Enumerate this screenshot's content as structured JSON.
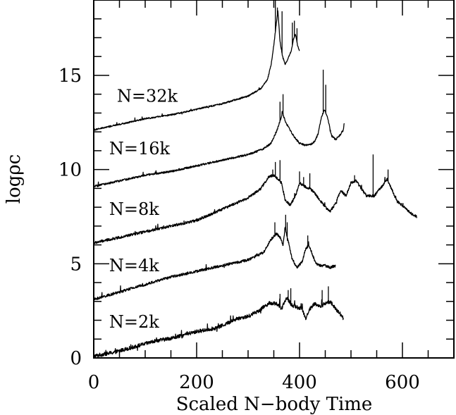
{
  "chart_data": {
    "type": "line",
    "xlabel": "Scaled N−body Time",
    "ylabel": "logρc",
    "xlim": [
      0,
      700
    ],
    "ylim": [
      0,
      19
    ],
    "x_ticks": [
      0,
      200,
      400,
      600
    ],
    "y_ticks": [
      0,
      5,
      10,
      15
    ],
    "x_minor_step": 50,
    "y_minor_step": 1,
    "grid": false,
    "legend": "none",
    "line_color": "#000000",
    "series": [
      {
        "name": "N=2k",
        "label_pos": [
          30,
          1.6
        ],
        "noise": 0.1,
        "points": [
          [
            0,
            0.1
          ],
          [
            40,
            0.3
          ],
          [
            80,
            0.6
          ],
          [
            120,
            0.9
          ],
          [
            160,
            1.1
          ],
          [
            200,
            1.4
          ],
          [
            240,
            1.6
          ],
          [
            280,
            2.1
          ],
          [
            300,
            2.2
          ],
          [
            320,
            2.5
          ],
          [
            340,
            2.9
          ],
          [
            355,
            2.9
          ],
          [
            365,
            2.6
          ],
          [
            375,
            3.2
          ],
          [
            385,
            2.8
          ],
          [
            395,
            2.7
          ],
          [
            405,
            2.6
          ],
          [
            412,
            2.1
          ],
          [
            420,
            2.6
          ],
          [
            430,
            2.9
          ],
          [
            440,
            2.7
          ],
          [
            450,
            2.9
          ],
          [
            460,
            3.0
          ],
          [
            470,
            2.6
          ],
          [
            480,
            2.3
          ],
          [
            485,
            2.1
          ]
        ],
        "spikes": [
          [
            362,
            3.4
          ],
          [
            378,
            3.6
          ],
          [
            383,
            3.7
          ],
          [
            444,
            3.6
          ],
          [
            456,
            3.8
          ]
        ]
      },
      {
        "name": "N=4k",
        "label_pos": [
          30,
          4.6
        ],
        "noise": 0.07,
        "points": [
          [
            0,
            3.1
          ],
          [
            50,
            3.5
          ],
          [
            100,
            3.9
          ],
          [
            150,
            4.3
          ],
          [
            200,
            4.6
          ],
          [
            250,
            4.9
          ],
          [
            300,
            5.2
          ],
          [
            330,
            5.6
          ],
          [
            345,
            6.3
          ],
          [
            355,
            6.6
          ],
          [
            362,
            6.4
          ],
          [
            368,
            6.0
          ],
          [
            372,
            6.9
          ],
          [
            378,
            6.2
          ],
          [
            385,
            5.3
          ],
          [
            395,
            4.8
          ],
          [
            405,
            5.1
          ],
          [
            412,
            5.8
          ],
          [
            418,
            6.0
          ],
          [
            425,
            5.5
          ],
          [
            432,
            5.0
          ],
          [
            440,
            4.9
          ],
          [
            450,
            4.9
          ],
          [
            460,
            4.8
          ],
          [
            470,
            4.9
          ]
        ],
        "spikes": [
          [
            352,
            7.2
          ],
          [
            373,
            7.6
          ],
          [
            376,
            7.2
          ],
          [
            416,
            6.5
          ]
        ]
      },
      {
        "name": "N=8k",
        "label_pos": [
          30,
          7.6
        ],
        "noise": 0.07,
        "points": [
          [
            0,
            6.1
          ],
          [
            50,
            6.4
          ],
          [
            100,
            6.7
          ],
          [
            150,
            7.0
          ],
          [
            200,
            7.3
          ],
          [
            250,
            7.9
          ],
          [
            300,
            8.5
          ],
          [
            325,
            9.0
          ],
          [
            340,
            9.6
          ],
          [
            350,
            9.7
          ],
          [
            358,
            9.5
          ],
          [
            365,
            9.3
          ],
          [
            372,
            8.4
          ],
          [
            382,
            8.1
          ],
          [
            392,
            8.6
          ],
          [
            400,
            9.3
          ],
          [
            410,
            9.1
          ],
          [
            420,
            9.0
          ],
          [
            428,
            8.8
          ],
          [
            436,
            8.5
          ],
          [
            450,
            8.0
          ],
          [
            460,
            7.8
          ],
          [
            470,
            8.2
          ],
          [
            480,
            8.9
          ],
          [
            490,
            8.6
          ],
          [
            500,
            9.3
          ],
          [
            510,
            9.4
          ],
          [
            520,
            9.0
          ],
          [
            530,
            8.6
          ],
          [
            545,
            8.6
          ],
          [
            560,
            9.1
          ],
          [
            570,
            9.5
          ],
          [
            580,
            8.9
          ],
          [
            590,
            8.3
          ],
          [
            605,
            8.0
          ],
          [
            615,
            7.7
          ],
          [
            628,
            7.5
          ]
        ],
        "spikes": [
          [
            348,
            10.0
          ],
          [
            353,
            10.4
          ],
          [
            362,
            10.5
          ],
          [
            400,
            9.9
          ],
          [
            408,
            9.6
          ],
          [
            420,
            9.8
          ],
          [
            507,
            9.7
          ],
          [
            543,
            10.8
          ],
          [
            572,
            10.0
          ]
        ]
      },
      {
        "name": "N=16k",
        "label_pos": [
          30,
          10.8
        ],
        "noise": 0.05,
        "points": [
          [
            0,
            9.1
          ],
          [
            50,
            9.4
          ],
          [
            100,
            9.7
          ],
          [
            150,
            9.9
          ],
          [
            200,
            10.2
          ],
          [
            250,
            10.5
          ],
          [
            300,
            10.8
          ],
          [
            330,
            11.1
          ],
          [
            345,
            11.4
          ],
          [
            355,
            12.0
          ],
          [
            360,
            12.4
          ],
          [
            367,
            13.0
          ],
          [
            373,
            12.5
          ],
          [
            380,
            12.2
          ],
          [
            390,
            11.7
          ],
          [
            400,
            11.4
          ],
          [
            410,
            11.3
          ],
          [
            420,
            11.3
          ],
          [
            430,
            11.5
          ],
          [
            436,
            11.9
          ],
          [
            442,
            12.7
          ],
          [
            448,
            13.2
          ],
          [
            455,
            12.7
          ],
          [
            462,
            11.8
          ],
          [
            470,
            11.6
          ],
          [
            478,
            11.8
          ],
          [
            485,
            12.1
          ],
          [
            487,
            12.5
          ]
        ],
        "spikes": [
          [
            362,
            13.6
          ],
          [
            368,
            14.0
          ],
          [
            446,
            15.3
          ],
          [
            451,
            14.5
          ]
        ]
      },
      {
        "name": "N=32k",
        "label_pos": [
          45,
          13.6
        ],
        "noise": 0.04,
        "points": [
          [
            0,
            12.1
          ],
          [
            50,
            12.4
          ],
          [
            100,
            12.7
          ],
          [
            150,
            12.9
          ],
          [
            200,
            13.2
          ],
          [
            250,
            13.5
          ],
          [
            300,
            13.9
          ],
          [
            325,
            14.3
          ],
          [
            338,
            14.8
          ],
          [
            345,
            15.6
          ],
          [
            350,
            16.6
          ],
          [
            355,
            17.8
          ],
          [
            358,
            18.4
          ],
          [
            362,
            16.8
          ],
          [
            367,
            16.0
          ],
          [
            372,
            15.6
          ],
          [
            378,
            15.9
          ],
          [
            384,
            16.3
          ],
          [
            388,
            16.9
          ],
          [
            392,
            17.2
          ],
          [
            396,
            16.6
          ],
          [
            400,
            16.3
          ]
        ],
        "spikes": [
          [
            353,
            19.0
          ],
          [
            357,
            18.6
          ],
          [
            366,
            18.4
          ],
          [
            386,
            17.8
          ],
          [
            390,
            17.9
          ],
          [
            395,
            17.5
          ]
        ]
      }
    ]
  }
}
